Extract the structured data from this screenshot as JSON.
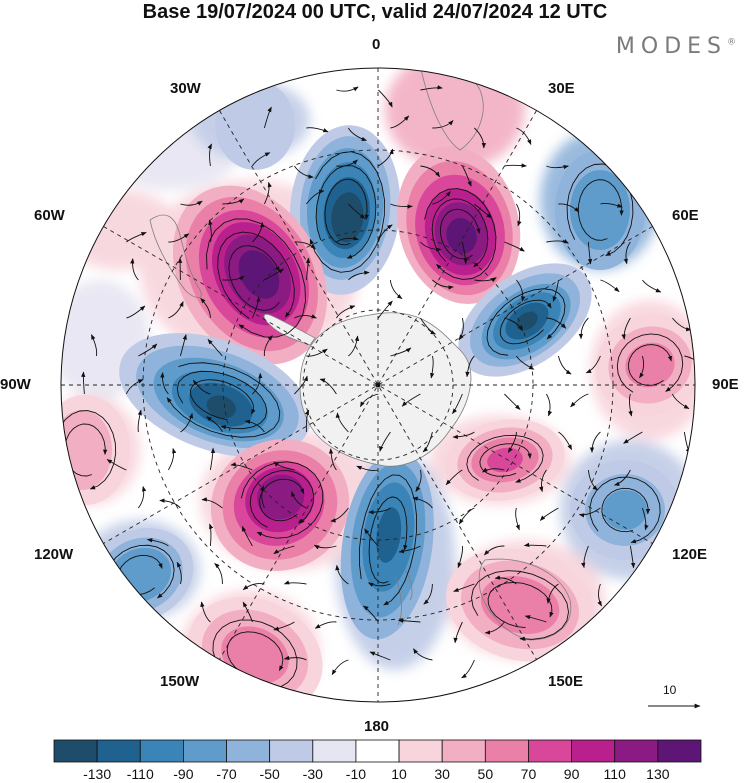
{
  "title": "Base 19/07/2024 00 UTC, valid 24/07/2024 12 UTC",
  "brand": "MODES",
  "brand_mark": "®",
  "longitude_labels": {
    "lon_0": "0",
    "lon_30e": "30E",
    "lon_60e": "60E",
    "lon_90e": "90E",
    "lon_120e": "120E",
    "lon_150e": "150E",
    "lon_180": "180",
    "lon_150w": "150W",
    "lon_120w": "120W",
    "lon_90w": "90W",
    "lon_60w": "60W",
    "lon_30w": "30W"
  },
  "colorbar": {
    "ticks": [
      "-130",
      "-110",
      "-90",
      "-70",
      "-50",
      "-30",
      "-10",
      "10",
      "30",
      "50",
      "70",
      "90",
      "110",
      "130"
    ],
    "colors": [
      "#1e4d6b",
      "#1f618f",
      "#3a84b7",
      "#5f9ccb",
      "#8fb3da",
      "#bfcbe6",
      "#e6e5f2",
      "#ffffff",
      "#f8d4dc",
      "#f2aec2",
      "#ea80a8",
      "#d9479a",
      "#b9208e",
      "#8b1a83",
      "#5e1676"
    ]
  },
  "reference_vector": "10",
  "map_colors": {
    "land": "#f1f1f1",
    "continent_outline": "#7f7f7f",
    "graticule": "#222222"
  }
}
